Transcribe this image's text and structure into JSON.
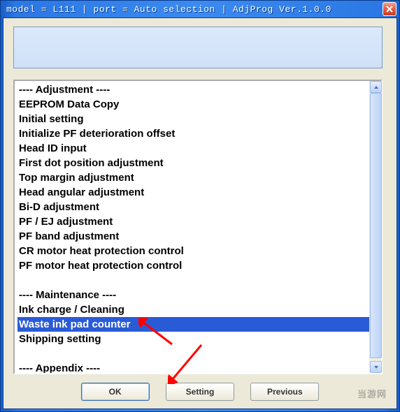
{
  "titlebar": {
    "text": "model = L111 | port = Auto selection | AdjProg Ver.1.0.0"
  },
  "colors": {
    "titlebar_gradient": [
      "#1a5fc9",
      "#3b8af0"
    ],
    "client_bg": "#ece9d8",
    "banner_bg": [
      "#dbe9fb",
      "#cfe0f7"
    ],
    "selection_bg": "#2a5bd7",
    "selection_fg": "#ffffff",
    "arrow_color": "#ff0000"
  },
  "list": {
    "items": [
      {
        "label": "---- Adjustment ----",
        "selected": false
      },
      {
        "label": "EEPROM Data Copy",
        "selected": false
      },
      {
        "label": "Initial setting",
        "selected": false
      },
      {
        "label": "Initialize PF deterioration offset",
        "selected": false
      },
      {
        "label": "Head ID input",
        "selected": false
      },
      {
        "label": "First dot position adjustment",
        "selected": false
      },
      {
        "label": "Top margin adjustment",
        "selected": false
      },
      {
        "label": "Head angular adjustment",
        "selected": false
      },
      {
        "label": "Bi-D adjustment",
        "selected": false
      },
      {
        "label": "PF / EJ adjustment",
        "selected": false
      },
      {
        "label": "PF band adjustment",
        "selected": false
      },
      {
        "label": "CR motor heat protection control",
        "selected": false
      },
      {
        "label": "PF motor heat protection control",
        "selected": false
      },
      {
        "label": "",
        "selected": false
      },
      {
        "label": "---- Maintenance ----",
        "selected": false
      },
      {
        "label": "Ink charge / Cleaning",
        "selected": false
      },
      {
        "label": "Waste ink pad counter",
        "selected": true
      },
      {
        "label": "Shipping setting",
        "selected": false
      },
      {
        "label": "",
        "selected": false
      },
      {
        "label": "---- Appendix ----",
        "selected": false
      }
    ]
  },
  "buttons": {
    "ok": "OK",
    "setting": "Setting",
    "previous": "Previous"
  },
  "watermark": "当游网"
}
